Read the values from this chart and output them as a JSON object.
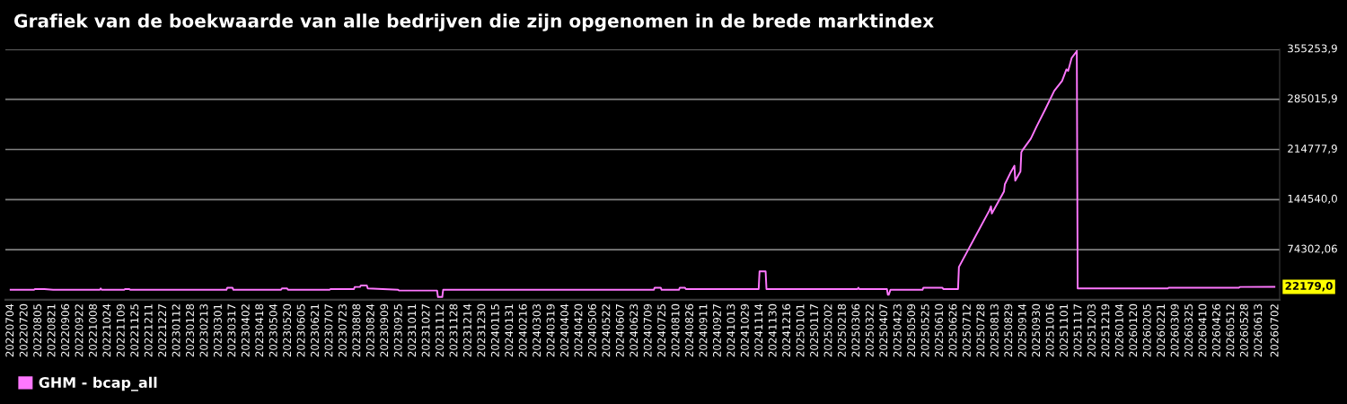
{
  "chart_data": {
    "type": "line",
    "title": "Grafiek van de boekwaarde van alle bedrijven die zijn opgenomen in de brede marktindex",
    "x": [
      "2022-07-04",
      "2022-07-31",
      "2022-08-01",
      "2022-08-12",
      "2022-08-22",
      "2022-10-15",
      "2022-10-16",
      "2022-10-17",
      "2022-11-12",
      "2022-11-13",
      "2022-11-18",
      "2022-11-19",
      "2023-03-10",
      "2023-03-11",
      "2023-03-17",
      "2023-03-18",
      "2023-05-12",
      "2023-05-13",
      "2023-05-19",
      "2023-05-20",
      "2023-07-07",
      "2023-07-08",
      "2023-08-04",
      "2023-08-05",
      "2023-08-11",
      "2023-08-12",
      "2023-08-19",
      "2023-08-20",
      "2023-09-24",
      "2023-09-25",
      "2023-11-08",
      "2023-11-09",
      "2023-11-14",
      "2023-11-15",
      "2024-02-26",
      "2024-07-15",
      "2024-07-16",
      "2024-07-23",
      "2024-07-24",
      "2024-08-13",
      "2024-08-14",
      "2024-08-20",
      "2024-08-21",
      "2024-11-13",
      "2024-11-14",
      "2024-11-21",
      "2024-11-22",
      "2025-03-07",
      "2025-03-08",
      "2025-03-09",
      "2025-03-16",
      "2025-03-23",
      "2025-04-10",
      "2025-04-11",
      "2025-04-12",
      "2025-04-14",
      "2025-05-21",
      "2025-05-22",
      "2025-06-13",
      "2025-06-14",
      "2025-07-01",
      "2025-07-02",
      "2025-08-06",
      "2025-08-08",
      "2025-08-09",
      "2025-08-23",
      "2025-08-24",
      "2025-08-30",
      "2025-09-04",
      "2025-09-05",
      "2025-09-11",
      "2025-09-12",
      "2025-09-14",
      "2025-09-23",
      "2025-09-30",
      "2025-10-10",
      "2025-10-20",
      "2025-10-29",
      "2025-11-03",
      "2025-11-05",
      "2025-11-09",
      "2025-11-14",
      "2025-11-15",
      "2025-11-16",
      "2026-02-28",
      "2026-03-01",
      "2026-05-21",
      "2026-05-22",
      "2026-07-01"
    ],
    "series": [
      {
        "name": "GHM - bcap_all",
        "color": "#ff77ff",
        "values": [
          18000,
          18000,
          19000,
          19000,
          18000,
          18000,
          20000,
          18000,
          18000,
          19000,
          19000,
          18000,
          18000,
          21000,
          21000,
          18000,
          18000,
          20000,
          20000,
          18000,
          18000,
          19000,
          19000,
          22000,
          22000,
          24000,
          24000,
          20000,
          18000,
          17000,
          17000,
          8000,
          8000,
          18000,
          18000,
          18000,
          21000,
          21000,
          18000,
          18000,
          21000,
          21000,
          19000,
          19000,
          44000,
          44000,
          19000,
          19000,
          21000,
          19000,
          19000,
          19000,
          19000,
          11000,
          11000,
          18000,
          18000,
          21000,
          21000,
          19000,
          19000,
          50000,
          129000,
          135000,
          125000,
          156000,
          166000,
          181000,
          192000,
          171000,
          184000,
          211000,
          215000,
          230000,
          248000,
          272000,
          297000,
          311000,
          327000,
          325000,
          343000,
          351000,
          353000,
          20000,
          20000,
          21000,
          21000,
          22000,
          22179
        ]
      }
    ],
    "xlim": [
      "2022-06-28",
      "2026-07-07"
    ],
    "ylim": [
      4064,
      355253.9
    ],
    "xticks": [
      {
        "value": "2022-07-04",
        "label": "20220704"
      },
      {
        "value": "2022-07-20",
        "label": "20220720"
      },
      {
        "value": "2022-08-05",
        "label": "20220805"
      },
      {
        "value": "2022-08-21",
        "label": "20220821"
      },
      {
        "value": "2022-09-06",
        "label": "20220906"
      },
      {
        "value": "2022-09-22",
        "label": "20220922"
      },
      {
        "value": "2022-10-08",
        "label": "20221008"
      },
      {
        "value": "2022-10-24",
        "label": "20221024"
      },
      {
        "value": "2022-11-09",
        "label": "20221109"
      },
      {
        "value": "2022-11-25",
        "label": "20221125"
      },
      {
        "value": "2022-12-11",
        "label": "20221211"
      },
      {
        "value": "2022-12-27",
        "label": "20221227"
      },
      {
        "value": "2023-01-12",
        "label": "20230112"
      },
      {
        "value": "2023-01-28",
        "label": "20230128"
      },
      {
        "value": "2023-02-13",
        "label": "20230213"
      },
      {
        "value": "2023-03-01",
        "label": "20230301"
      },
      {
        "value": "2023-03-17",
        "label": "20230317"
      },
      {
        "value": "2023-04-02",
        "label": "20230402"
      },
      {
        "value": "2023-04-18",
        "label": "20230418"
      },
      {
        "value": "2023-05-04",
        "label": "20230504"
      },
      {
        "value": "2023-05-20",
        "label": "20230520"
      },
      {
        "value": "2023-06-05",
        "label": "20230605"
      },
      {
        "value": "2023-06-21",
        "label": "20230621"
      },
      {
        "value": "2023-07-07",
        "label": "20230707"
      },
      {
        "value": "2023-07-23",
        "label": "20230723"
      },
      {
        "value": "2023-08-08",
        "label": "20230808"
      },
      {
        "value": "2023-08-24",
        "label": "20230824"
      },
      {
        "value": "2023-09-09",
        "label": "20230909"
      },
      {
        "value": "2023-09-25",
        "label": "20230925"
      },
      {
        "value": "2023-10-11",
        "label": "20231011"
      },
      {
        "value": "2023-10-27",
        "label": "20231027"
      },
      {
        "value": "2023-11-12",
        "label": "20231112"
      },
      {
        "value": "2023-11-28",
        "label": "20231128"
      },
      {
        "value": "2023-12-14",
        "label": "20231214"
      },
      {
        "value": "2023-12-30",
        "label": "20231230"
      },
      {
        "value": "2024-01-15",
        "label": "20240115"
      },
      {
        "value": "2024-01-31",
        "label": "20240131"
      },
      {
        "value": "2024-02-16",
        "label": "20240216"
      },
      {
        "value": "2024-03-03",
        "label": "20240303"
      },
      {
        "value": "2024-03-19",
        "label": "20240319"
      },
      {
        "value": "2024-04-04",
        "label": "20240404"
      },
      {
        "value": "2024-04-20",
        "label": "20240420"
      },
      {
        "value": "2024-05-06",
        "label": "20240506"
      },
      {
        "value": "2024-05-22",
        "label": "20240522"
      },
      {
        "value": "2024-06-07",
        "label": "20240607"
      },
      {
        "value": "2024-06-23",
        "label": "20240623"
      },
      {
        "value": "2024-07-09",
        "label": "20240709"
      },
      {
        "value": "2024-07-25",
        "label": "20240725"
      },
      {
        "value": "2024-08-10",
        "label": "20240810"
      },
      {
        "value": "2024-08-26",
        "label": "20240826"
      },
      {
        "value": "2024-09-11",
        "label": "20240911"
      },
      {
        "value": "2024-09-27",
        "label": "20240927"
      },
      {
        "value": "2024-10-13",
        "label": "20241013"
      },
      {
        "value": "2024-10-29",
        "label": "20241029"
      },
      {
        "value": "2024-11-14",
        "label": "20241114"
      },
      {
        "value": "2024-11-30",
        "label": "20241130"
      },
      {
        "value": "2024-12-16",
        "label": "20241216"
      },
      {
        "value": "2025-01-01",
        "label": "20250101"
      },
      {
        "value": "2025-01-17",
        "label": "20250117"
      },
      {
        "value": "2025-02-02",
        "label": "20250202"
      },
      {
        "value": "2025-02-18",
        "label": "20250218"
      },
      {
        "value": "2025-03-06",
        "label": "20250306"
      },
      {
        "value": "2025-03-22",
        "label": "20250322"
      },
      {
        "value": "2025-04-07",
        "label": "20250407"
      },
      {
        "value": "2025-04-23",
        "label": "20250423"
      },
      {
        "value": "2025-05-09",
        "label": "20250509"
      },
      {
        "value": "2025-05-25",
        "label": "20250525"
      },
      {
        "value": "2025-06-10",
        "label": "20250610"
      },
      {
        "value": "2025-06-26",
        "label": "20250626"
      },
      {
        "value": "2025-07-12",
        "label": "20250712"
      },
      {
        "value": "2025-07-28",
        "label": "20250728"
      },
      {
        "value": "2025-08-13",
        "label": "20250813"
      },
      {
        "value": "2025-08-29",
        "label": "20250829"
      },
      {
        "value": "2025-09-14",
        "label": "20250914"
      },
      {
        "value": "2025-09-30",
        "label": "20250930"
      },
      {
        "value": "2025-10-16",
        "label": "20251016"
      },
      {
        "value": "2025-11-01",
        "label": "20251101"
      },
      {
        "value": "2025-11-17",
        "label": "20251117"
      },
      {
        "value": "2025-12-03",
        "label": "20251203"
      },
      {
        "value": "2025-12-19",
        "label": "20251219"
      },
      {
        "value": "2026-01-04",
        "label": "20260104"
      },
      {
        "value": "2026-01-20",
        "label": "20260120"
      },
      {
        "value": "2026-02-05",
        "label": "20260205"
      },
      {
        "value": "2026-02-21",
        "label": "20260221"
      },
      {
        "value": "2026-03-09",
        "label": "20260309"
      },
      {
        "value": "2026-03-25",
        "label": "20260325"
      },
      {
        "value": "2026-04-10",
        "label": "20260410"
      },
      {
        "value": "2026-04-26",
        "label": "20260426"
      },
      {
        "value": "2026-05-12",
        "label": "20260512"
      },
      {
        "value": "2026-05-28",
        "label": "20260528"
      },
      {
        "value": "2026-06-13",
        "label": "20260613"
      },
      {
        "value": "2026-07-02",
        "label": "20260702"
      }
    ],
    "yticks": [
      {
        "value": 74302.06,
        "label": "74302,06"
      },
      {
        "value": 144540.0,
        "label": "144540,0"
      },
      {
        "value": 214777.9,
        "label": "214777,9"
      },
      {
        "value": 285015.9,
        "label": "285015,9"
      },
      {
        "value": 355253.9,
        "label": "355253,9"
      }
    ],
    "grid": "y",
    "legend": "bottom left",
    "annotations": [
      {
        "text": "22179,0",
        "x": "2026-07-01",
        "y": 22179
      }
    ]
  }
}
